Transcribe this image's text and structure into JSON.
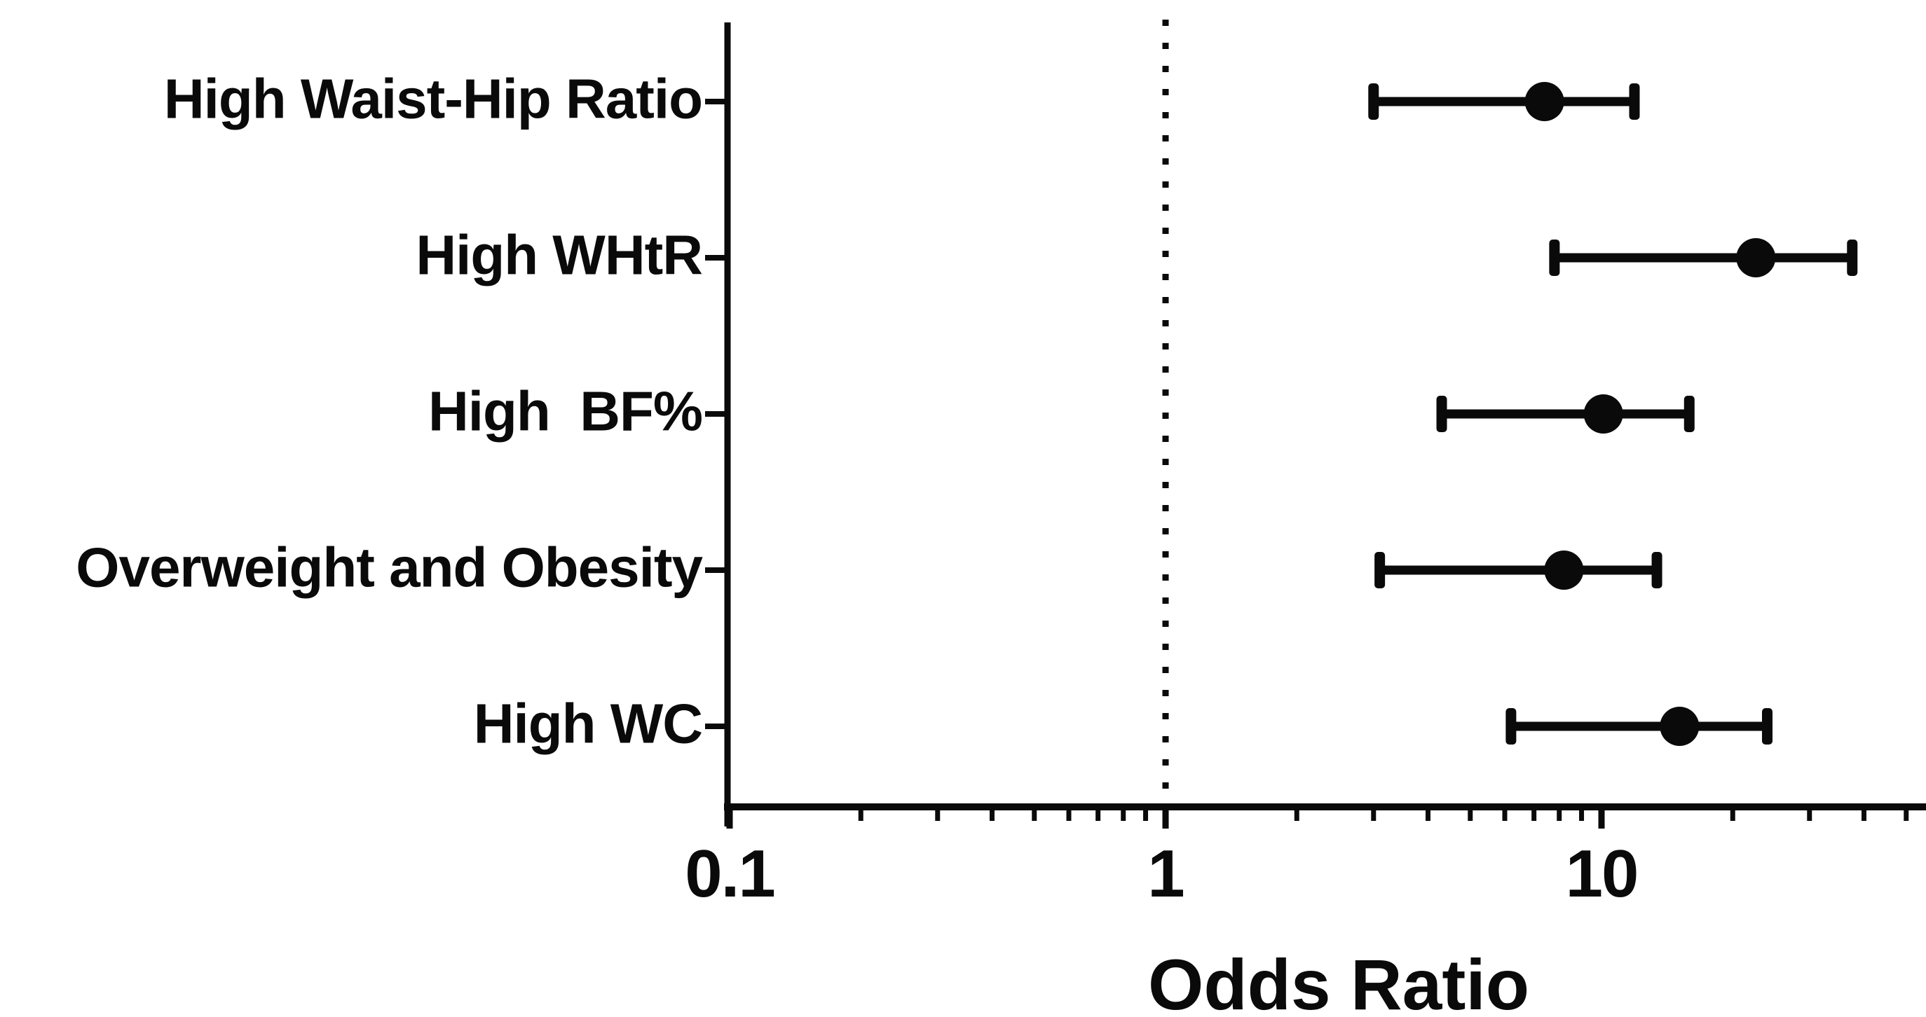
{
  "chart_data": {
    "type": "scatter",
    "variant": "forest-plot",
    "orientation": "horizontal",
    "title": "",
    "xlabel": "Odds Ratio",
    "ylabel": "",
    "x_scale": "log",
    "xlim": [
      0.1,
      55
    ],
    "x_tick_labels": [
      "0.1",
      "1",
      "10"
    ],
    "x_tick_values": [
      0.1,
      1,
      10
    ],
    "reference_line": {
      "x": 1,
      "style": "dotted"
    },
    "grid": false,
    "legend": false,
    "ink_color": "#0a0a0a",
    "background_color": "#ffffff",
    "rows": [
      {
        "label": "High Waist-Hip Ratio",
        "or": 7.4,
        "ci_low": 3.0,
        "ci_high": 11.9
      },
      {
        "label": "High WHtR",
        "or": 22.6,
        "ci_low": 7.8,
        "ci_high": 37.6
      },
      {
        "label": "High  BF%",
        "or": 10.1,
        "ci_low": 4.3,
        "ci_high": 15.9
      },
      {
        "label": "Overweight and Obesity",
        "or": 8.2,
        "ci_low": 3.1,
        "ci_high": 13.4
      },
      {
        "label": "High WC",
        "or": 15.1,
        "ci_low": 6.2,
        "ci_high": 24.0
      }
    ]
  }
}
